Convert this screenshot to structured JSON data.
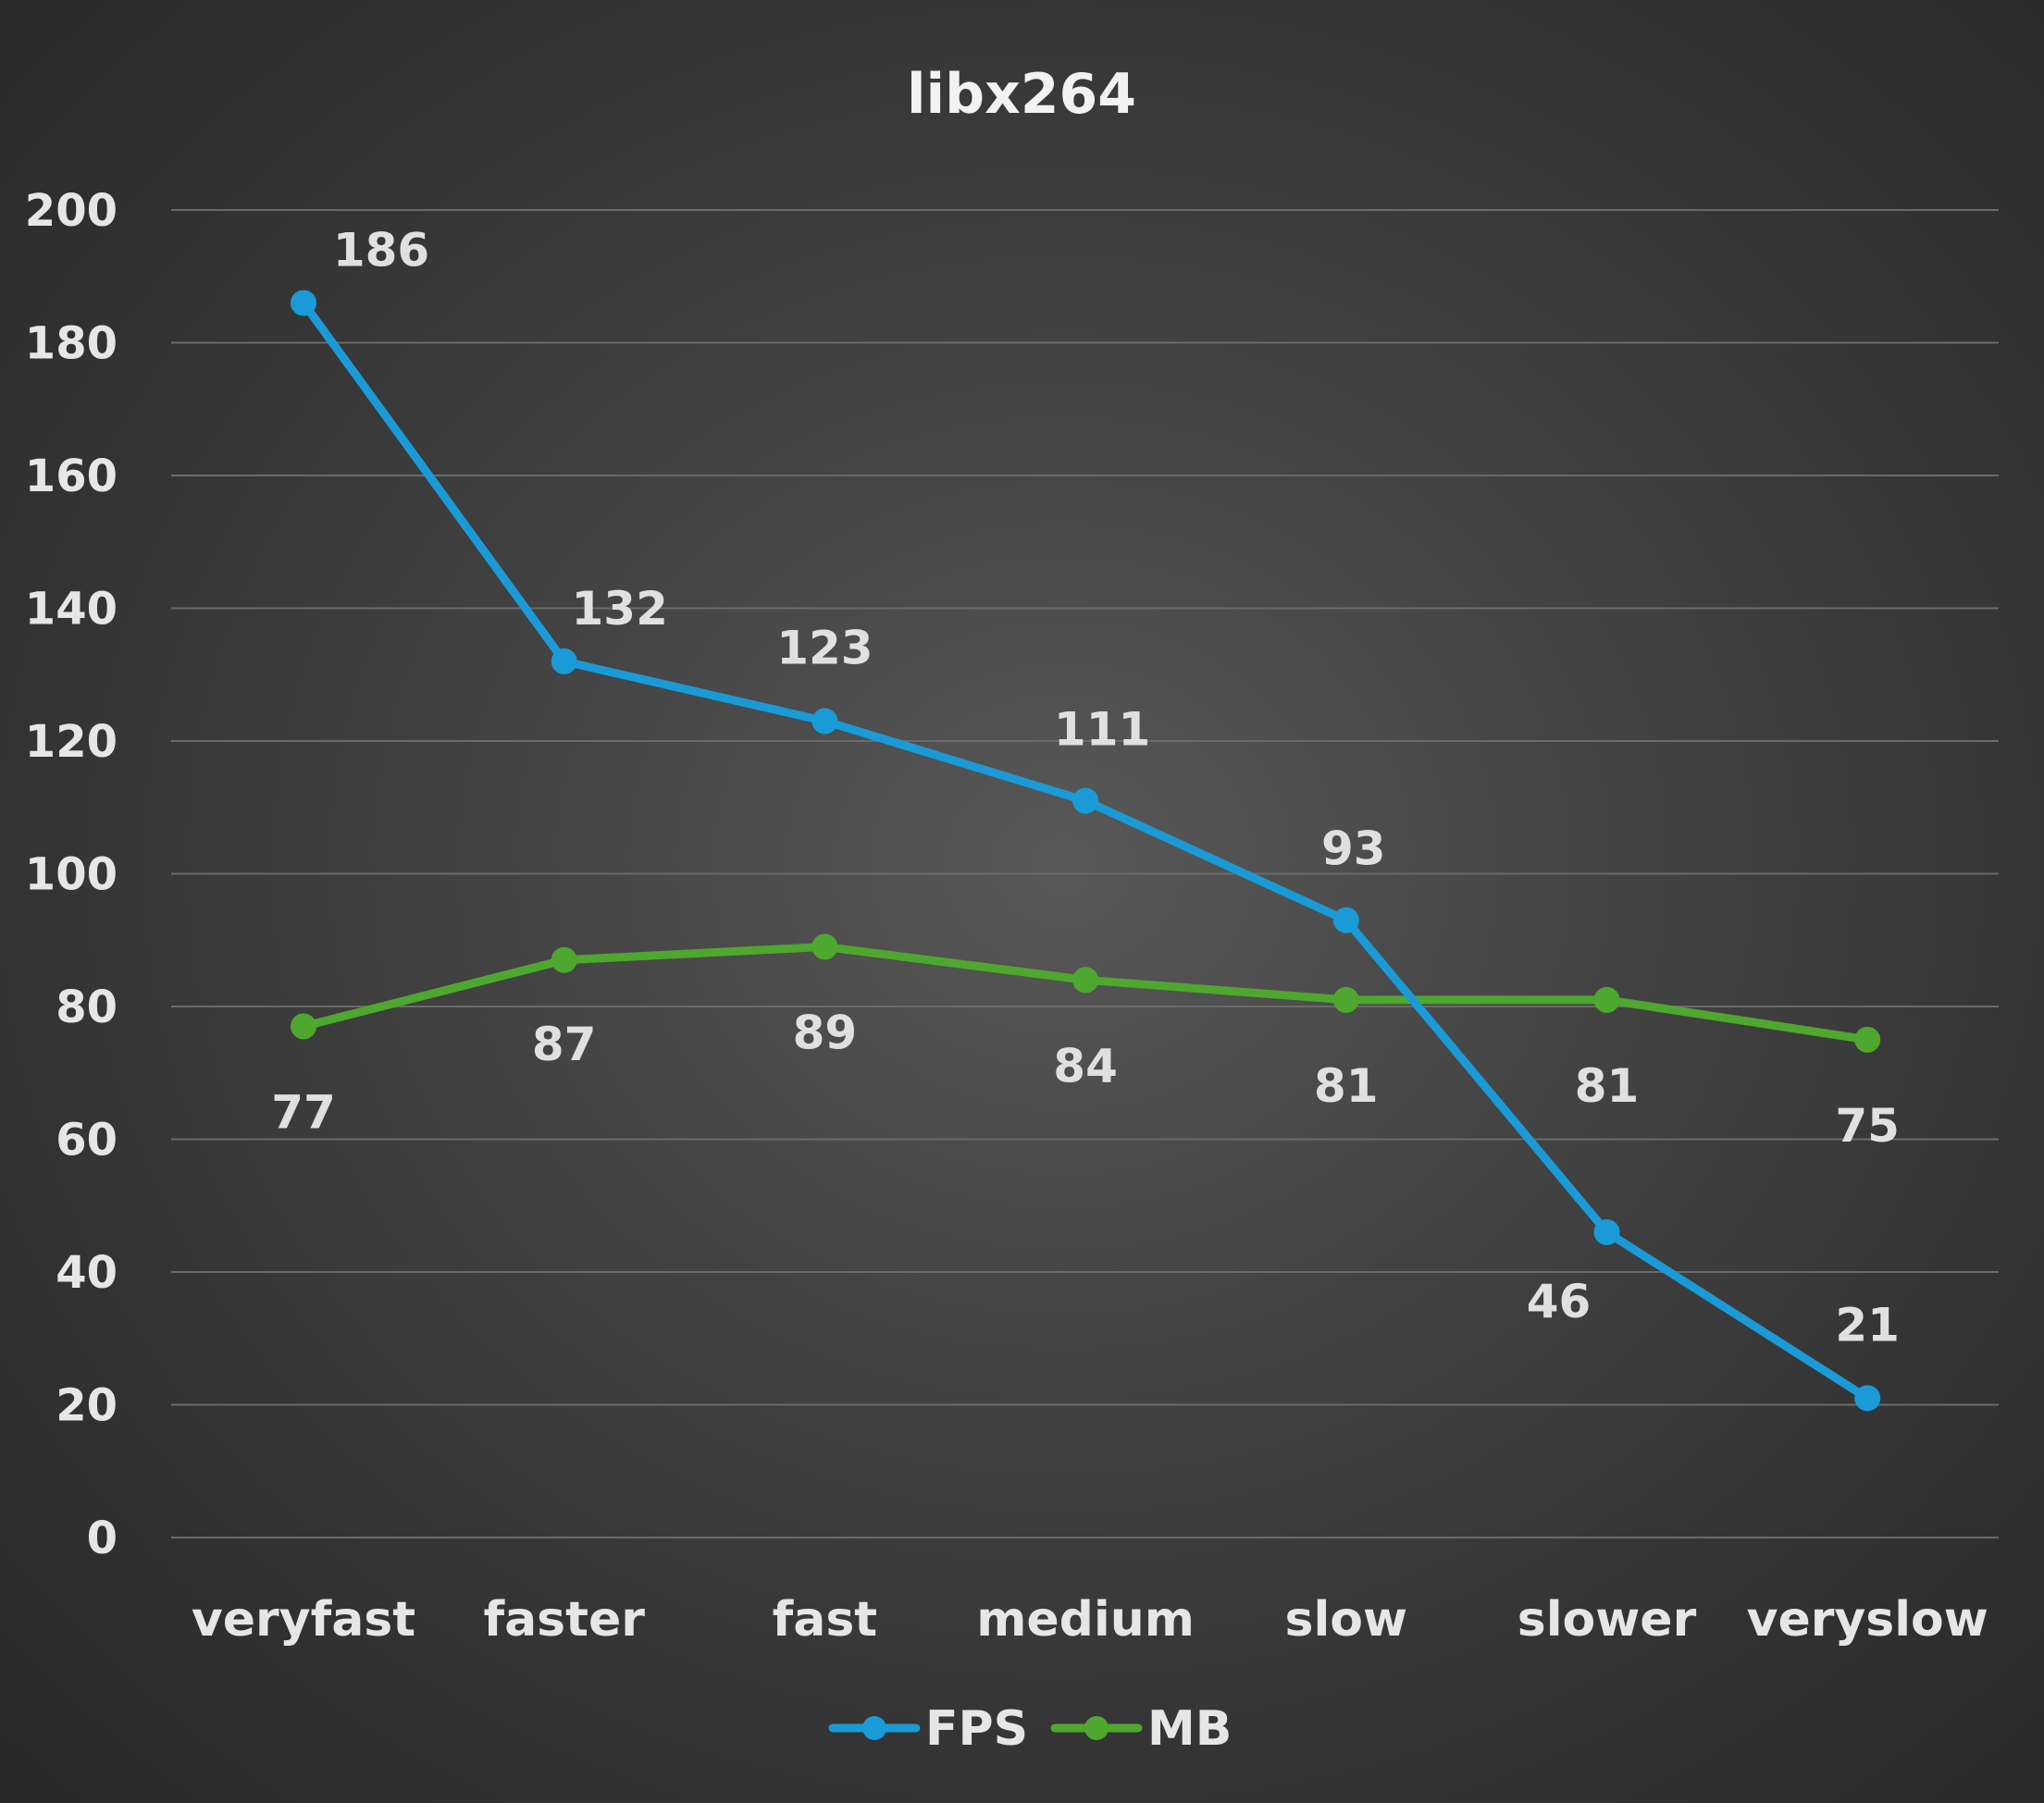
{
  "chart_data": {
    "type": "line",
    "title": "libx264",
    "xlabel": "",
    "ylabel": "",
    "categories": [
      "veryfast",
      "faster",
      "fast",
      "medium",
      "slow",
      "slower",
      "veryslow"
    ],
    "ylim": [
      0,
      200
    ],
    "yticks": [
      0,
      20,
      40,
      60,
      80,
      100,
      120,
      140,
      160,
      180,
      200
    ],
    "grid": true,
    "legend_position": "bottom",
    "series": [
      {
        "name": "FPS",
        "color": "#1a9ad6",
        "values": [
          186,
          132,
          123,
          111,
          93,
          46,
          21
        ],
        "data_labels": [
          "186",
          "132",
          "123",
          "111",
          "93",
          "46",
          "21"
        ]
      },
      {
        "name": "MB",
        "color": "#4ea72e",
        "values": [
          77,
          87,
          89,
          84,
          81,
          81,
          75
        ],
        "data_labels": [
          "77",
          "87",
          "89",
          "84",
          "81",
          "81",
          "75"
        ]
      }
    ]
  }
}
